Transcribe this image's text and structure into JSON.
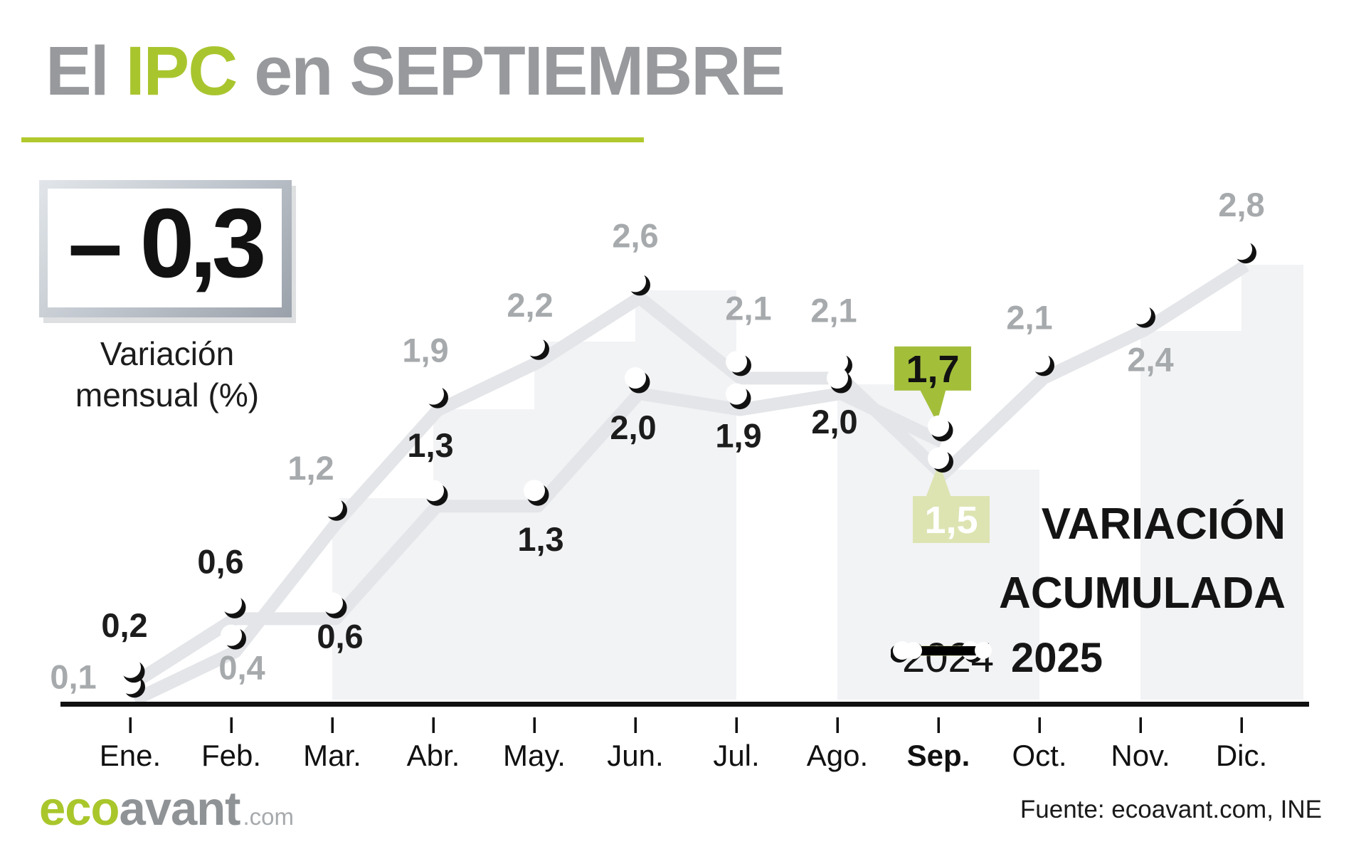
{
  "title": {
    "prefix": "El ",
    "highlight": "IPC",
    "suffix": " en SEPTIEMBRE"
  },
  "headline": {
    "value": "– 0,3",
    "label_line1": "Variación",
    "label_line2": "mensual (%)"
  },
  "legend": {
    "title_line1": "VARIACIÓN",
    "title_line2": "ACUMULADA",
    "entries": [
      {
        "label": "2024"
      },
      {
        "label": "2025"
      }
    ]
  },
  "footer": {
    "logo_eco": "eco",
    "logo_avant": "avant",
    "logo_tld": ".com",
    "source": "Fuente: ecoavant.com, INE"
  },
  "colors": {
    "accent_green": "#a9c52e",
    "line_2025": "#a6c43c",
    "line_2024": "#d8e2a6",
    "line_2024_edge": "#c6d389",
    "shadow_gray": "#e3e5e8",
    "band_gray": "#edeff1",
    "label_gray": "#a7aaac",
    "title_gray": "#97999c",
    "callout_dark_bg": "#a3bf3a",
    "callout_dark_text": "#121212",
    "callout_light_bg": "#dde4b2",
    "callout_light_text": "#ffffff",
    "axis_black": "#111111"
  },
  "chart_data": {
    "type": "line",
    "title": "VARIACIÓN ACUMULADA",
    "unit": "%",
    "categories": [
      "Ene.",
      "Feb.",
      "Mar.",
      "Abr.",
      "May.",
      "Jun.",
      "Jul.",
      "Ago.",
      "Sep.",
      "Oct.",
      "Nov.",
      "Dic."
    ],
    "highlighted_category": "Sep.",
    "ylim": [
      0,
      3.0
    ],
    "grid": false,
    "legend_position": "bottom-right",
    "series": [
      {
        "name": "2024",
        "values": [
          0.1,
          0.4,
          1.2,
          1.9,
          2.2,
          2.6,
          2.1,
          2.1,
          1.5,
          2.1,
          2.4,
          2.8
        ],
        "labels": [
          "0,1",
          "0,4",
          "1,2",
          "1,9",
          "2,2",
          "2,6",
          "2,1",
          "2,1",
          "1,5",
          "2,1",
          "2,4",
          "2,8"
        ]
      },
      {
        "name": "2025",
        "values": [
          0.2,
          0.6,
          0.6,
          1.3,
          1.3,
          2.0,
          1.9,
          2.0,
          1.7
        ],
        "labels": [
          "0,2",
          "0,6",
          "0,6",
          "1,3",
          "1,3",
          "2,0",
          "1,9",
          "2,0",
          "1,7"
        ]
      }
    ],
    "callouts": [
      {
        "series": "2025",
        "category": "Sep.",
        "label": "1,7",
        "style": "solid-green"
      },
      {
        "series": "2024",
        "category": "Sep.",
        "label": "1,5",
        "style": "light-green"
      }
    ]
  }
}
